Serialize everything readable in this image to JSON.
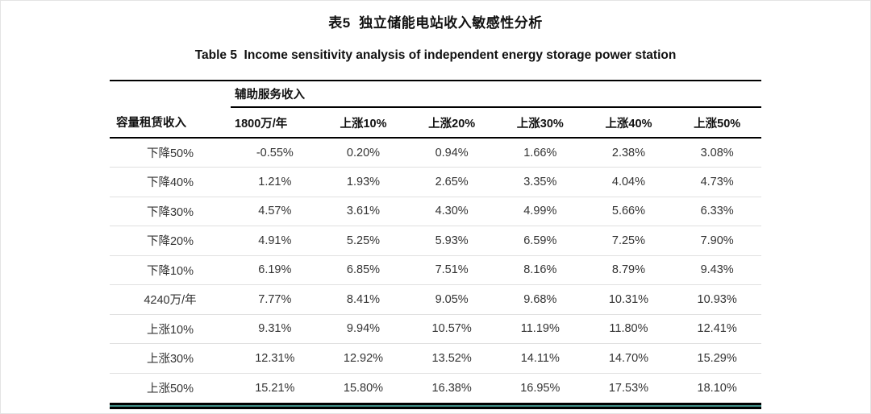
{
  "captions": {
    "zh": "表5  独立储能电站收入敏感性分析",
    "en": "Table 5  Income sensitivity analysis of independent energy storage power station"
  },
  "table": {
    "group_header": "辅助服务收入",
    "row_header_label": "容量租赁收入",
    "col_headers": [
      "1800万/年",
      "上涨10%",
      "上涨20%",
      "上涨30%",
      "上涨40%",
      "上涨50%"
    ],
    "rows": [
      {
        "label": "下降50%",
        "values": [
          "-0.55%",
          "0.20%",
          "0.94%",
          "1.66%",
          "2.38%",
          "3.08%"
        ]
      },
      {
        "label": "下降40%",
        "values": [
          "1.21%",
          "1.93%",
          "2.65%",
          "3.35%",
          "4.04%",
          "4.73%"
        ]
      },
      {
        "label": "下降30%",
        "values": [
          "4.57%",
          "3.61%",
          "4.30%",
          "4.99%",
          "5.66%",
          "6.33%"
        ]
      },
      {
        "label": "下降20%",
        "values": [
          "4.91%",
          "5.25%",
          "5.93%",
          "6.59%",
          "7.25%",
          "7.90%"
        ]
      },
      {
        "label": "下降10%",
        "values": [
          "6.19%",
          "6.85%",
          "7.51%",
          "8.16%",
          "8.79%",
          "9.43%"
        ]
      },
      {
        "label": "4240万/年",
        "values": [
          "7.77%",
          "8.41%",
          "9.05%",
          "9.68%",
          "10.31%",
          "10.93%"
        ]
      },
      {
        "label": "上涨10%",
        "values": [
          "9.31%",
          "9.94%",
          "10.57%",
          "11.19%",
          "11.80%",
          "12.41%"
        ]
      },
      {
        "label": "上涨30%",
        "values": [
          "12.31%",
          "12.92%",
          "13.52%",
          "14.11%",
          "14.70%",
          "15.29%"
        ]
      },
      {
        "label": "上涨50%",
        "values": [
          "15.21%",
          "15.80%",
          "16.38%",
          "16.95%",
          "17.53%",
          "18.10%"
        ]
      }
    ]
  },
  "colors": {
    "rule_black": "#000000",
    "row_separator": "#e0e0e0",
    "bottom_accent": "#3f8e86",
    "data_text": "#333333",
    "heading_text": "#111111"
  },
  "chart_data": {
    "type": "table",
    "title": "表5 独立储能电站收入敏感性分析 / Table 5 Income sensitivity analysis of independent energy storage power station",
    "row_axis_label": "容量租赁收入",
    "column_group_label": "辅助服务收入",
    "columns": [
      "1800万/年",
      "上涨10%",
      "上涨20%",
      "上涨30%",
      "上涨40%",
      "上涨50%"
    ],
    "rows": [
      [
        "下降50%",
        "-0.55%",
        "0.20%",
        "0.94%",
        "1.66%",
        "2.38%",
        "3.08%"
      ],
      [
        "下降40%",
        "1.21%",
        "1.93%",
        "2.65%",
        "3.35%",
        "4.04%",
        "4.73%"
      ],
      [
        "下降30%",
        "4.57%",
        "3.61%",
        "4.30%",
        "4.99%",
        "5.66%",
        "6.33%"
      ],
      [
        "下降20%",
        "4.91%",
        "5.25%",
        "5.93%",
        "6.59%",
        "7.25%",
        "7.90%"
      ],
      [
        "下降10%",
        "6.19%",
        "6.85%",
        "7.51%",
        "8.16%",
        "8.79%",
        "9.43%"
      ],
      [
        "4240万/年",
        "7.77%",
        "8.41%",
        "9.05%",
        "9.68%",
        "10.31%",
        "10.93%"
      ],
      [
        "上涨10%",
        "9.31%",
        "9.94%",
        "10.57%",
        "11.19%",
        "11.80%",
        "12.41%"
      ],
      [
        "上涨30%",
        "12.31%",
        "12.92%",
        "13.52%",
        "14.11%",
        "14.70%",
        "15.29%"
      ],
      [
        "上涨50%",
        "15.21%",
        "15.80%",
        "16.38%",
        "16.95%",
        "17.53%",
        "18.10%"
      ]
    ]
  }
}
